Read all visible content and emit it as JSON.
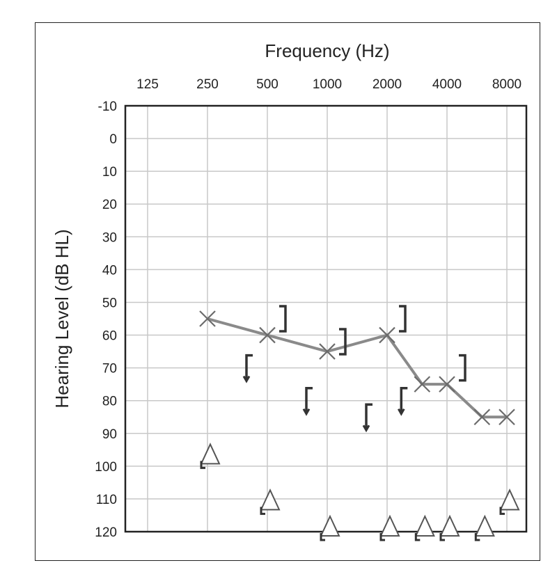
{
  "chart_data": {
    "type": "line",
    "xlabel": "Frequency (Hz)",
    "ylabel": "Hearing Level (dB HL)",
    "x_ticks": [
      "125",
      "250",
      "500",
      "1000",
      "2000",
      "4000",
      "8000"
    ],
    "x_tick_octaves": [
      0,
      1,
      2,
      3,
      4,
      5,
      6
    ],
    "y_ticks": [
      "-10",
      "0",
      "10",
      "20",
      "30",
      "40",
      "50",
      "60",
      "70",
      "80",
      "90",
      "100",
      "110",
      "120"
    ],
    "ylim": [
      -10,
      120
    ],
    "y_inverted": true,
    "x_scale": "log2 (octaves)",
    "grid": true,
    "series": [
      {
        "symbol": "X",
        "connected": true,
        "points": [
          {
            "x": 250,
            "y": 55
          },
          {
            "x": 500,
            "y": 60
          },
          {
            "x": 1000,
            "y": 65
          },
          {
            "x": 2000,
            "y": 60
          },
          {
            "x": 3000,
            "y": 75
          },
          {
            "x": 4000,
            "y": 75
          },
          {
            "x": 6000,
            "y": 85
          },
          {
            "x": 8000,
            "y": 85
          }
        ]
      },
      {
        "symbol": "]",
        "connected": false,
        "points": [
          {
            "x": 500,
            "y": 55
          },
          {
            "x": 1000,
            "y": 62
          },
          {
            "x": 2000,
            "y": 55
          },
          {
            "x": 4000,
            "y": 70
          }
        ]
      },
      {
        "symbol": "[",
        "no_response_arrow": true,
        "connected": false,
        "points": [
          {
            "x": 500,
            "y": 70
          },
          {
            "x": 1000,
            "y": 80
          },
          {
            "x": 2000,
            "y": 85
          },
          {
            "x": 3000,
            "y": 80
          }
        ]
      },
      {
        "symbol": "triangle",
        "no_response_arrow": true,
        "connected": false,
        "points": [
          {
            "x": 250,
            "y": 98
          },
          {
            "x": 500,
            "y": 112
          },
          {
            "x": 1000,
            "y": 120
          },
          {
            "x": 2000,
            "y": 120
          },
          {
            "x": 3000,
            "y": 120
          },
          {
            "x": 4000,
            "y": 120
          },
          {
            "x": 6000,
            "y": 120
          },
          {
            "x": 8000,
            "y": 112
          }
        ]
      }
    ]
  }
}
